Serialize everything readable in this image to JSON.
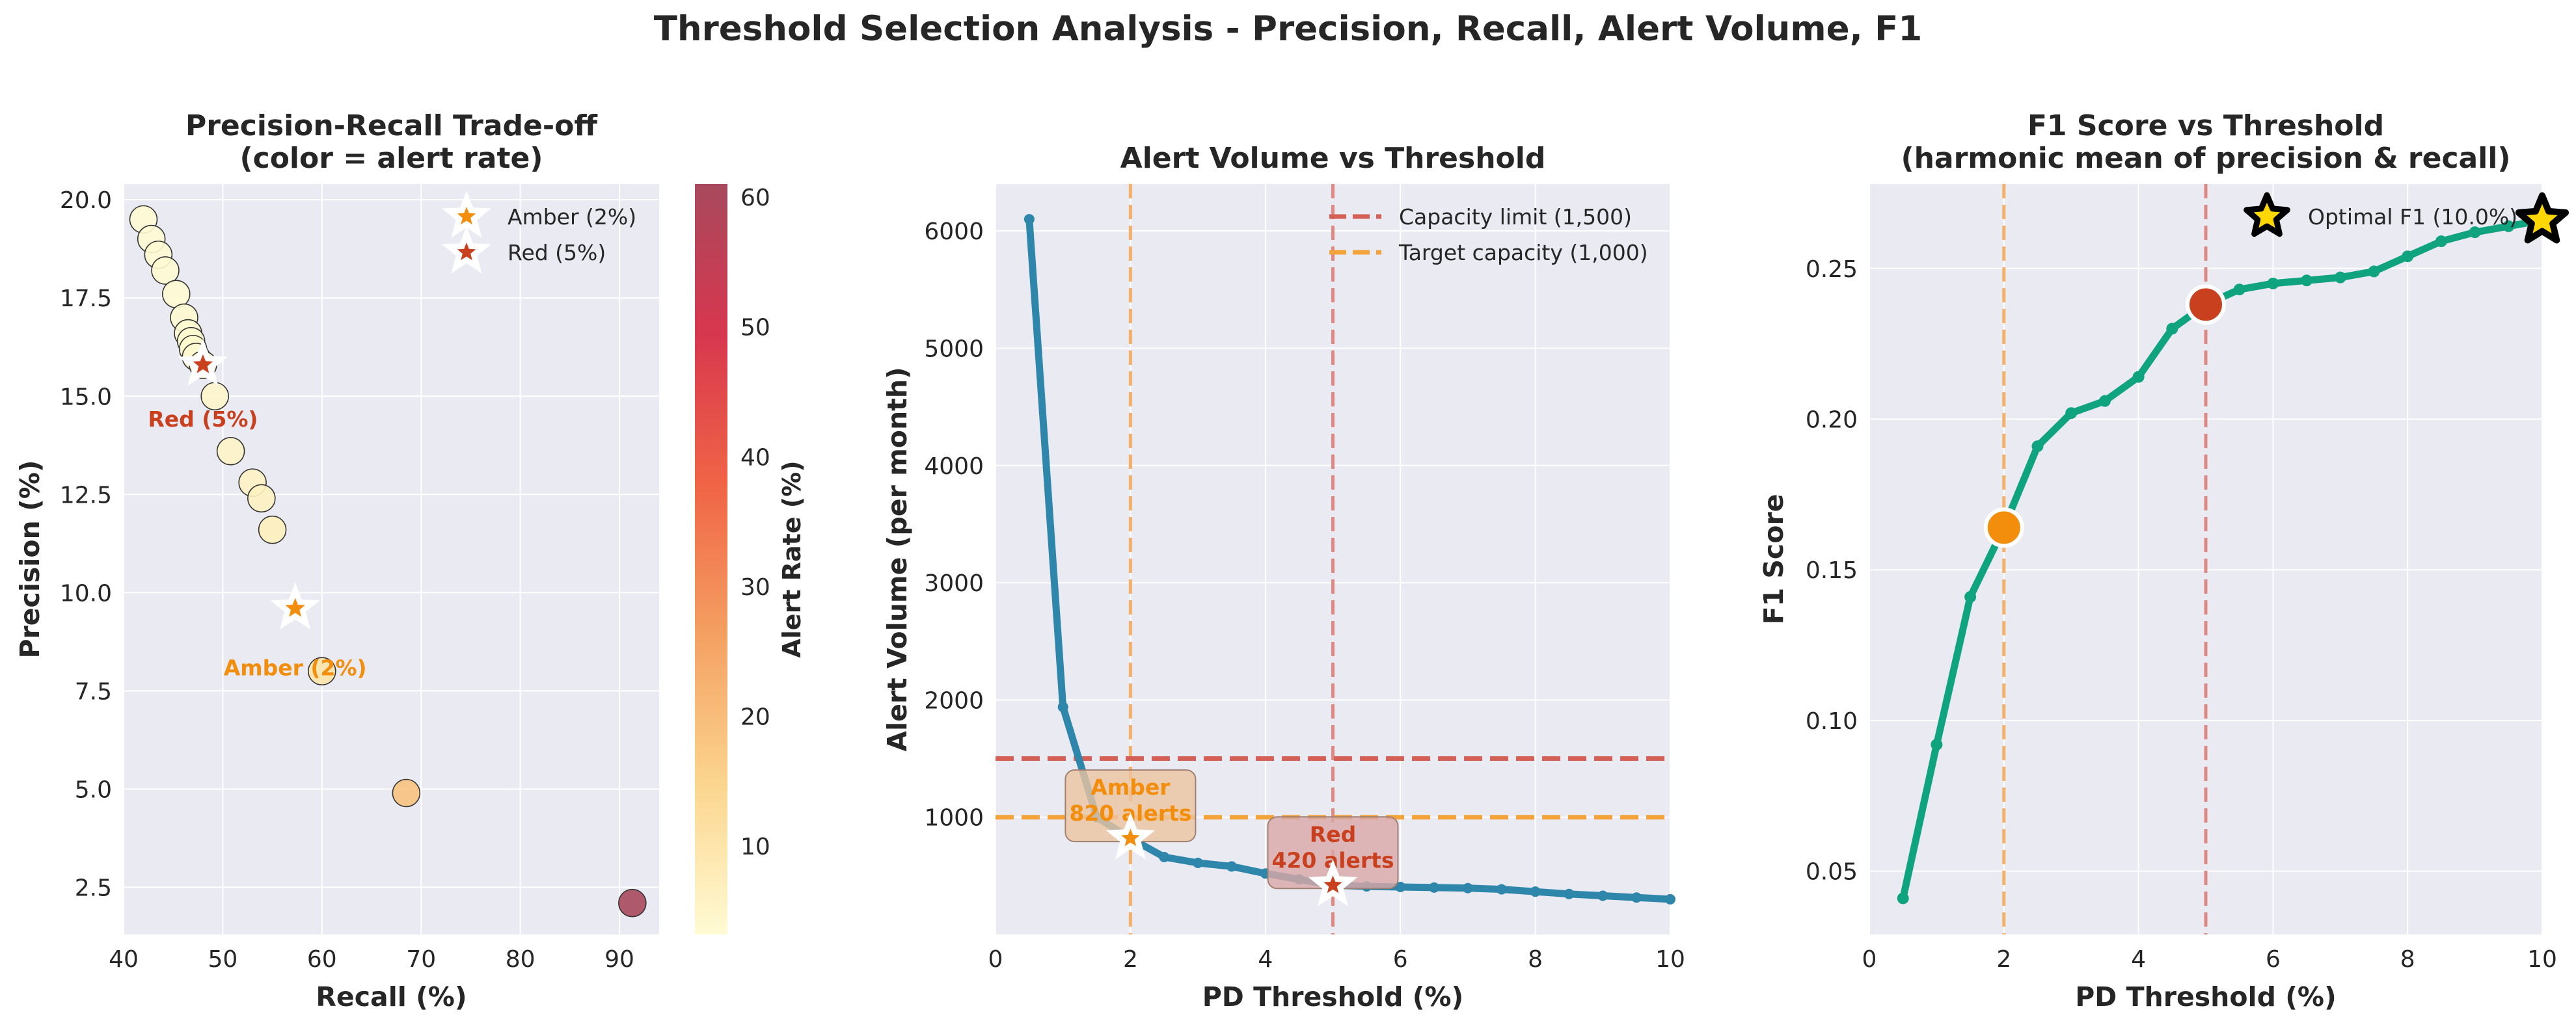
{
  "figure": {
    "title": "Threshold Selection Analysis - Precision, Recall, Alert Volume, F1"
  },
  "chart_data": [
    {
      "type": "scatter",
      "title": "Precision-Recall Trade-off\n(color = alert rate)",
      "xlabel": "Recall (%)",
      "ylabel": "Precision (%)",
      "xlim": [
        40,
        94
      ],
      "ylim": [
        1.3,
        20.4
      ],
      "xticks": [
        40,
        50,
        60,
        70,
        80,
        90
      ],
      "yticks": [
        2.5,
        5.0,
        7.5,
        10.0,
        12.5,
        15.0,
        17.5,
        20.0
      ],
      "grid": true,
      "colorbar": {
        "label": "Alert Rate (%)",
        "min": 3.2,
        "max": 61,
        "ticks": [
          10,
          20,
          30,
          40,
          50,
          60
        ],
        "colors": [
          "#fffbd4",
          "#fbd58e",
          "#f4a062",
          "#f06446",
          "#d7374e",
          "#a8495d"
        ]
      },
      "points": [
        {
          "x": 42.0,
          "y": 19.5,
          "alert_rate": 3.3
        },
        {
          "x": 42.8,
          "y": 19.0,
          "alert_rate": 3.4
        },
        {
          "x": 43.5,
          "y": 18.6,
          "alert_rate": 3.5
        },
        {
          "x": 44.2,
          "y": 18.2,
          "alert_rate": 3.6
        },
        {
          "x": 45.3,
          "y": 17.6,
          "alert_rate": 3.7
        },
        {
          "x": 46.1,
          "y": 17.0,
          "alert_rate": 3.8
        },
        {
          "x": 46.5,
          "y": 16.6,
          "alert_rate": 3.9
        },
        {
          "x": 46.8,
          "y": 16.4,
          "alert_rate": 4.0
        },
        {
          "x": 47.0,
          "y": 16.2,
          "alert_rate": 4.1
        },
        {
          "x": 47.3,
          "y": 16.0,
          "alert_rate": 4.2
        },
        {
          "x": 48.0,
          "y": 15.8,
          "alert_rate": 4.4
        },
        {
          "x": 49.2,
          "y": 15.0,
          "alert_rate": 4.9
        },
        {
          "x": 50.8,
          "y": 13.6,
          "alert_rate": 5.5
        },
        {
          "x": 53.0,
          "y": 12.8,
          "alert_rate": 6.0
        },
        {
          "x": 53.9,
          "y": 12.4,
          "alert_rate": 6.3
        },
        {
          "x": 55.0,
          "y": 11.6,
          "alert_rate": 7.0
        },
        {
          "x": 60.0,
          "y": 8.0,
          "alert_rate": 10.5
        },
        {
          "x": 68.5,
          "y": 4.9,
          "alert_rate": 19.0
        },
        {
          "x": 91.3,
          "y": 2.1,
          "alert_rate": 61.0
        }
      ],
      "markers": [
        {
          "name": "Amber (2%)",
          "label": "Amber (2%)",
          "x": 57.3,
          "y": 9.6,
          "color": "#f28e0c"
        },
        {
          "name": "Red (5%)",
          "label": "Red (5%)",
          "x": 48.0,
          "y": 15.8,
          "color": "#c9401f"
        }
      ],
      "legend": "top-right"
    },
    {
      "type": "line",
      "title": "Alert Volume vs Threshold",
      "xlabel": "PD Threshold (%)",
      "ylabel": "Alert Volume (per month)",
      "xlim": [
        0,
        10
      ],
      "ylim": [
        0,
        6400
      ],
      "xticks": [
        0,
        2,
        4,
        6,
        8,
        10
      ],
      "yticks": [
        1000,
        2000,
        3000,
        4000,
        5000,
        6000
      ],
      "grid": true,
      "series": [
        {
          "color": "#2e86ab",
          "x": [
            0.5,
            1.0,
            1.5,
            2.0,
            2.5,
            3.0,
            3.5,
            4.0,
            4.5,
            5.0,
            5.5,
            6.0,
            6.5,
            7.0,
            7.5,
            8.0,
            8.5,
            9.0,
            9.5,
            10.0
          ],
          "y": [
            6100,
            1940,
            1000,
            820,
            660,
            610,
            580,
            520,
            470,
            420,
            410,
            405,
            400,
            395,
            385,
            365,
            345,
            330,
            315,
            300
          ]
        }
      ],
      "hlines": [
        {
          "name": "Capacity limit (1,500)",
          "y": 1500,
          "color": "#d35f55"
        },
        {
          "name": "Target capacity (1,000)",
          "y": 1000,
          "color": "#f2a43a"
        }
      ],
      "vlines": [
        {
          "x": 2,
          "color": "#f5b068"
        },
        {
          "x": 5,
          "color": "#dd8a83"
        }
      ],
      "annotations": [
        {
          "label": "Amber\n820 alerts",
          "x": 2,
          "y": 820,
          "color": "#f28e0c",
          "box": "#ecc4a0"
        },
        {
          "label": "Red\n420 alerts",
          "x": 5,
          "y": 420,
          "color": "#c9401f",
          "box": "#dba7a6"
        }
      ],
      "legend": "top-right"
    },
    {
      "type": "line",
      "title": "F1 Score vs Threshold\n(harmonic mean of precision & recall)",
      "xlabel": "PD Threshold (%)",
      "ylabel": "F1 Score",
      "xlim": [
        0,
        10
      ],
      "ylim": [
        0.029,
        0.278
      ],
      "xticks": [
        0,
        2,
        4,
        6,
        8,
        10
      ],
      "yticks": [
        0.05,
        0.1,
        0.15,
        0.2,
        0.25
      ],
      "grid": true,
      "series": [
        {
          "color": "#10a37f",
          "x": [
            0.5,
            1.0,
            1.5,
            2.0,
            2.5,
            3.0,
            3.5,
            4.0,
            4.5,
            5.0,
            5.5,
            6.0,
            6.5,
            7.0,
            7.5,
            8.0,
            8.5,
            9.0,
            9.5,
            10.0
          ],
          "y": [
            0.041,
            0.092,
            0.141,
            0.164,
            0.191,
            0.202,
            0.206,
            0.214,
            0.23,
            0.238,
            0.243,
            0.245,
            0.246,
            0.247,
            0.249,
            0.254,
            0.259,
            0.262,
            0.264,
            0.266
          ]
        }
      ],
      "vlines": [
        {
          "x": 2,
          "color": "#f5b068"
        },
        {
          "x": 5,
          "color": "#dd8a83"
        }
      ],
      "markers": [
        {
          "x": 2,
          "y": 0.164,
          "color": "#f28e0c"
        },
        {
          "x": 5,
          "y": 0.238,
          "color": "#c9401f"
        }
      ],
      "optimal": {
        "name": "Optimal F1 (10.0%)",
        "x": 10,
        "y": 0.266
      },
      "legend": "top-right"
    }
  ]
}
